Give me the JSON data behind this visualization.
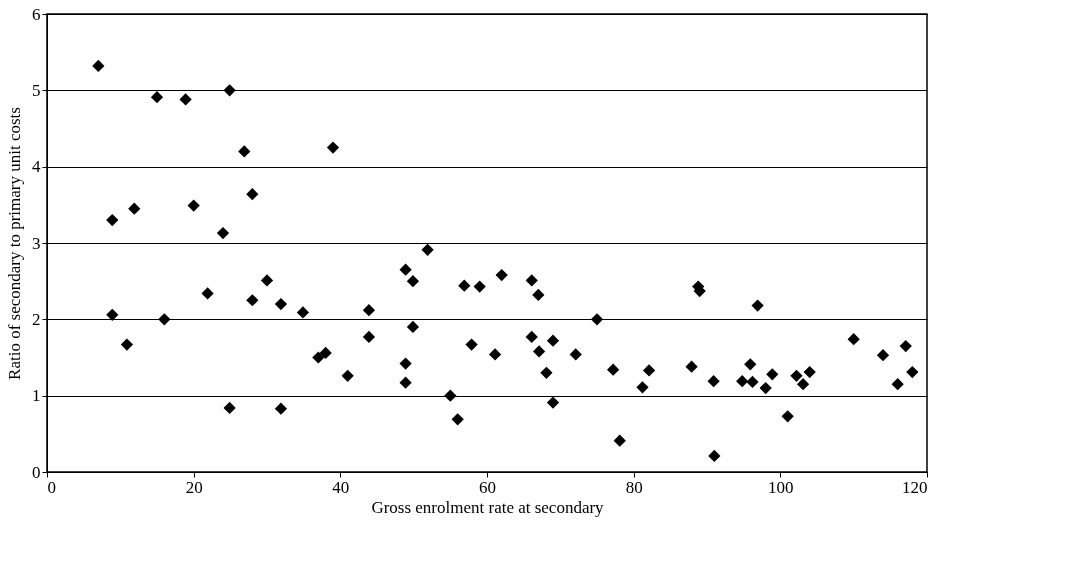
{
  "chart_data": {
    "type": "scatter",
    "xlabel": "Gross enrolment rate at secondary",
    "ylabel": "Ratio of secondary to primary unit costs",
    "x": [
      7.0,
      15.0,
      18.9,
      24.9,
      26.9,
      39.0,
      28.0,
      20.0,
      11.9,
      8.9,
      24.0,
      30.0,
      21.9,
      28.0,
      31.9,
      34.9,
      8.9,
      16.0,
      10.9,
      38.0,
      37.0,
      41.0,
      24.9,
      31.9,
      43.9,
      43.9,
      48.9,
      49.9,
      49.9,
      48.9,
      48.9,
      51.9,
      55.0,
      56.0,
      56.9,
      59.0,
      57.9,
      62.0,
      61.1,
      66.1,
      67.0,
      66.1,
      67.1,
      69.0,
      68.1,
      69.0,
      72.1,
      75.0,
      77.2,
      78.1,
      82.1,
      81.2,
      87.9,
      88.8,
      89.0,
      90.9,
      91.0,
      96.9,
      95.9,
      94.8,
      96.2,
      98.0,
      98.9,
      102.2,
      103.1,
      104.0,
      101.0,
      110.0,
      114.0,
      117.1,
      118.0,
      116.0
    ],
    "series": [
      {
        "color": "#000000",
        "values": [
          5.32,
          4.91,
          4.88,
          5.0,
          4.2,
          4.25,
          3.64,
          3.49,
          3.45,
          3.3,
          3.13,
          2.51,
          2.34,
          2.25,
          2.2,
          2.09,
          2.06,
          2.0,
          1.67,
          1.56,
          1.5,
          1.26,
          0.84,
          0.83,
          2.12,
          1.77,
          2.65,
          2.5,
          1.9,
          1.42,
          1.17,
          2.91,
          1.0,
          0.69,
          2.44,
          2.43,
          1.67,
          2.58,
          1.54,
          2.51,
          2.32,
          1.77,
          1.58,
          1.72,
          1.3,
          0.91,
          1.54,
          2.0,
          1.34,
          0.41,
          1.33,
          1.11,
          1.38,
          2.43,
          2.37,
          1.19,
          0.21,
          2.18,
          1.41,
          1.19,
          1.18,
          1.1,
          1.28,
          1.26,
          1.15,
          1.31,
          0.73,
          1.74,
          1.53,
          1.65,
          1.31,
          1.15
        ]
      }
    ],
    "xlim": [
      0,
      120
    ],
    "xticks": [
      0,
      20,
      40,
      60,
      80,
      100,
      120
    ],
    "ylim": [
      0,
      6
    ],
    "yticks": [
      0,
      1,
      2,
      3,
      4,
      5,
      6
    ],
    "grid": "y",
    "marker": "diamond",
    "legend": false
  }
}
